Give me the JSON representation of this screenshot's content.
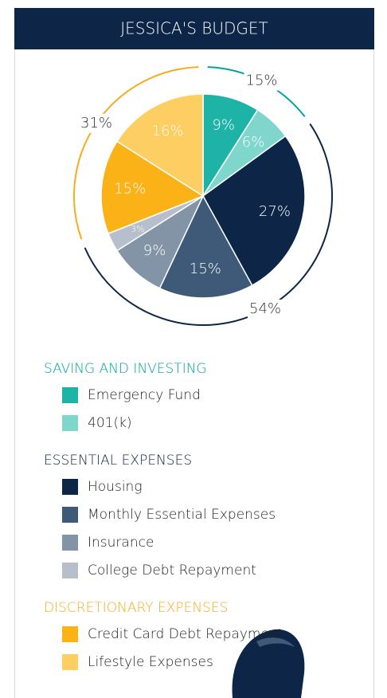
{
  "chart_data": {
    "type": "pie",
    "title": "JESSICA'S BUDGET",
    "groups": [
      {
        "name": "SAVING AND INVESTING",
        "color": "#00a39b",
        "value": 15,
        "value_label": "15%",
        "items": [
          {
            "name": "Emergency Fund",
            "color": "#1db3a7",
            "value": 9,
            "value_label": "9%"
          },
          {
            "name": "401(k)",
            "color": "#7fd6cd",
            "value": 6,
            "value_label": "6%"
          }
        ]
      },
      {
        "name": "ESSENTIAL EXPENSES",
        "color": "#0d2647",
        "value": 54,
        "value_label": "54%",
        "items": [
          {
            "name": "Housing",
            "color": "#0d2647",
            "value": 27,
            "value_label": "27%"
          },
          {
            "name": "Monthly Essential Expenses",
            "color": "#3f5a78",
            "value": 15,
            "value_label": "15%"
          },
          {
            "name": "Insurance",
            "color": "#8494a7",
            "value": 9,
            "value_label": "9%"
          },
          {
            "name": "College Debt Repayment",
            "color": "#b6bfcb",
            "value": 3,
            "value_label": "3%"
          }
        ]
      },
      {
        "name": "DISCRETIONARY EXPENSES",
        "color": "#f5ad1c",
        "value": 31,
        "value_label": "31%",
        "items": [
          {
            "name": "Credit Card Debt Repayment",
            "color": "#fbb217",
            "value": 15,
            "value_label": "15%"
          },
          {
            "name": "Lifestyle Expenses",
            "color": "#fdce62",
            "value": 16,
            "value_label": "16%"
          }
        ]
      }
    ]
  }
}
